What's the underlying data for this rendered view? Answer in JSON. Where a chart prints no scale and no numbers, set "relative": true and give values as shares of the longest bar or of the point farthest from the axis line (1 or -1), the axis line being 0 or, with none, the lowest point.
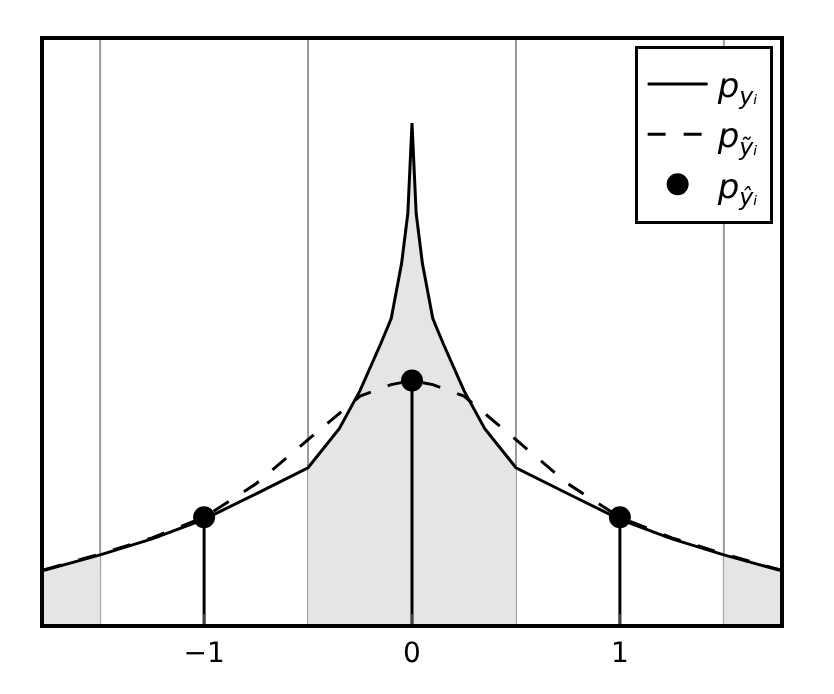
{
  "chart_data": {
    "type": "line",
    "relative": true,
    "xlim": [
      -1.77,
      1.77
    ],
    "xticks": [
      -1,
      0,
      1
    ],
    "legend": "top right",
    "tick_labels": "x",
    "series": [
      {
        "type": "area",
        "color": "#e5e5e5",
        "x": [
          -1.77,
          -1.5
        ],
        "values": [
          0.107,
          0.138
        ]
      },
      {
        "type": "area",
        "color": "#e5e5e5",
        "x": [
          -0.5,
          -0.35,
          -0.25,
          -0.15,
          -0.1,
          -0.05,
          -0.02,
          0,
          0.02,
          0.05,
          0.1,
          0.15,
          0.25,
          0.35,
          0.5
        ],
        "values": [
          0.312,
          0.39,
          0.466,
          0.56,
          0.61,
          0.72,
          0.82,
          1,
          0.82,
          0.72,
          0.61,
          0.56,
          0.466,
          0.39,
          0.312
        ]
      },
      {
        "type": "area",
        "color": "#e5e5e5",
        "x": [
          1.5,
          1.77
        ],
        "values": [
          0.138,
          0.107
        ]
      },
      {
        "name": "p$_{yᵢ}$",
        "color": "#000000",
        "line_style": "solid",
        "x": [
          -1.77,
          -1.5,
          -1.25,
          -1,
          -0.75,
          -0.5,
          -0.35,
          -0.25,
          -0.15,
          -0.1,
          -0.05,
          -0.02,
          0,
          0.02,
          0.05,
          0.1,
          0.15,
          0.25,
          0.35,
          0.5,
          0.75,
          1,
          1.25,
          1.5,
          1.77
        ],
        "values": [
          0.107,
          0.138,
          0.17,
          0.209,
          0.26,
          0.312,
          0.39,
          0.466,
          0.56,
          0.61,
          0.72,
          0.82,
          1,
          0.82,
          0.72,
          0.61,
          0.56,
          0.466,
          0.39,
          0.312,
          0.26,
          0.209,
          0.17,
          0.138,
          0.107
        ]
      },
      {
        "name": "p$_{ỹᵢ}$",
        "color": "#000000",
        "line_style": "dashed",
        "x": [
          -1.77,
          -1.5,
          -1.25,
          -1,
          -0.75,
          -0.5,
          -0.25,
          -0.1,
          0,
          0.1,
          0.25,
          0.5,
          0.75,
          1,
          1.25,
          1.5,
          1.77
        ],
        "values": [
          0.108,
          0.14,
          0.172,
          0.213,
          0.28,
          0.368,
          0.455,
          0.478,
          0.486,
          0.478,
          0.455,
          0.368,
          0.28,
          0.213,
          0.172,
          0.14,
          0.108
        ]
      },
      {
        "type": "lollipop",
        "name": "p$_{ŷᵢ}$",
        "color": "#000000",
        "marker": "circle",
        "x": [
          -1,
          0,
          1
        ],
        "values": [
          0.213,
          0.486,
          0.213
        ]
      }
    ],
    "ref_lines": [
      {
        "axis": "x",
        "value": -1.5,
        "color": "#999999"
      },
      {
        "axis": "x",
        "value": -0.5,
        "color": "#999999"
      },
      {
        "axis": "x",
        "value": 0.5,
        "color": "#999999"
      },
      {
        "axis": "x",
        "value": 1.5,
        "color": "#999999"
      }
    ]
  }
}
